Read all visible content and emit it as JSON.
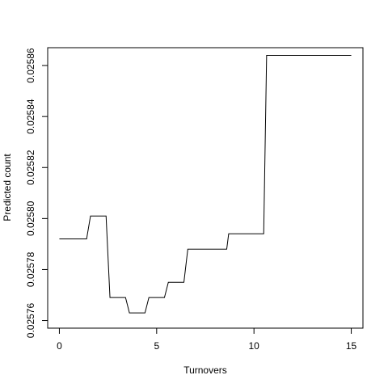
{
  "chart_data": {
    "type": "line",
    "xlabel": "Turnovers",
    "ylabel": "Predicted count",
    "xlim": [
      -0.6,
      15.6
    ],
    "ylim": [
      0.025757,
      0.025867
    ],
    "x_ticks": [
      0,
      5,
      10,
      15
    ],
    "x_tick_labels": [
      "0",
      "5",
      "10",
      "15"
    ],
    "y_ticks": [
      0.02576,
      0.02578,
      0.0258,
      0.02582,
      0.02584,
      0.02586
    ],
    "y_tick_labels": [
      "0.02576",
      "0.02578",
      "0.02580",
      "0.02582",
      "0.02584",
      "0.02586"
    ],
    "grid": false,
    "series": [
      {
        "color": "#000000",
        "points": [
          [
            0.0,
            0.025792
          ],
          [
            1.4,
            0.025792
          ],
          [
            1.6,
            0.025801
          ],
          [
            2.4,
            0.025801
          ],
          [
            2.6,
            0.025769
          ],
          [
            3.4,
            0.025769
          ],
          [
            3.6,
            0.025763
          ],
          [
            4.4,
            0.025763
          ],
          [
            4.6,
            0.025769
          ],
          [
            5.4,
            0.025769
          ],
          [
            5.6,
            0.025775
          ],
          [
            6.4,
            0.025775
          ],
          [
            6.6,
            0.025788
          ],
          [
            8.6,
            0.025788
          ],
          [
            8.7,
            0.025794
          ],
          [
            10.5,
            0.025794
          ],
          [
            10.65,
            0.025864
          ],
          [
            15.0,
            0.025864
          ]
        ]
      }
    ]
  }
}
